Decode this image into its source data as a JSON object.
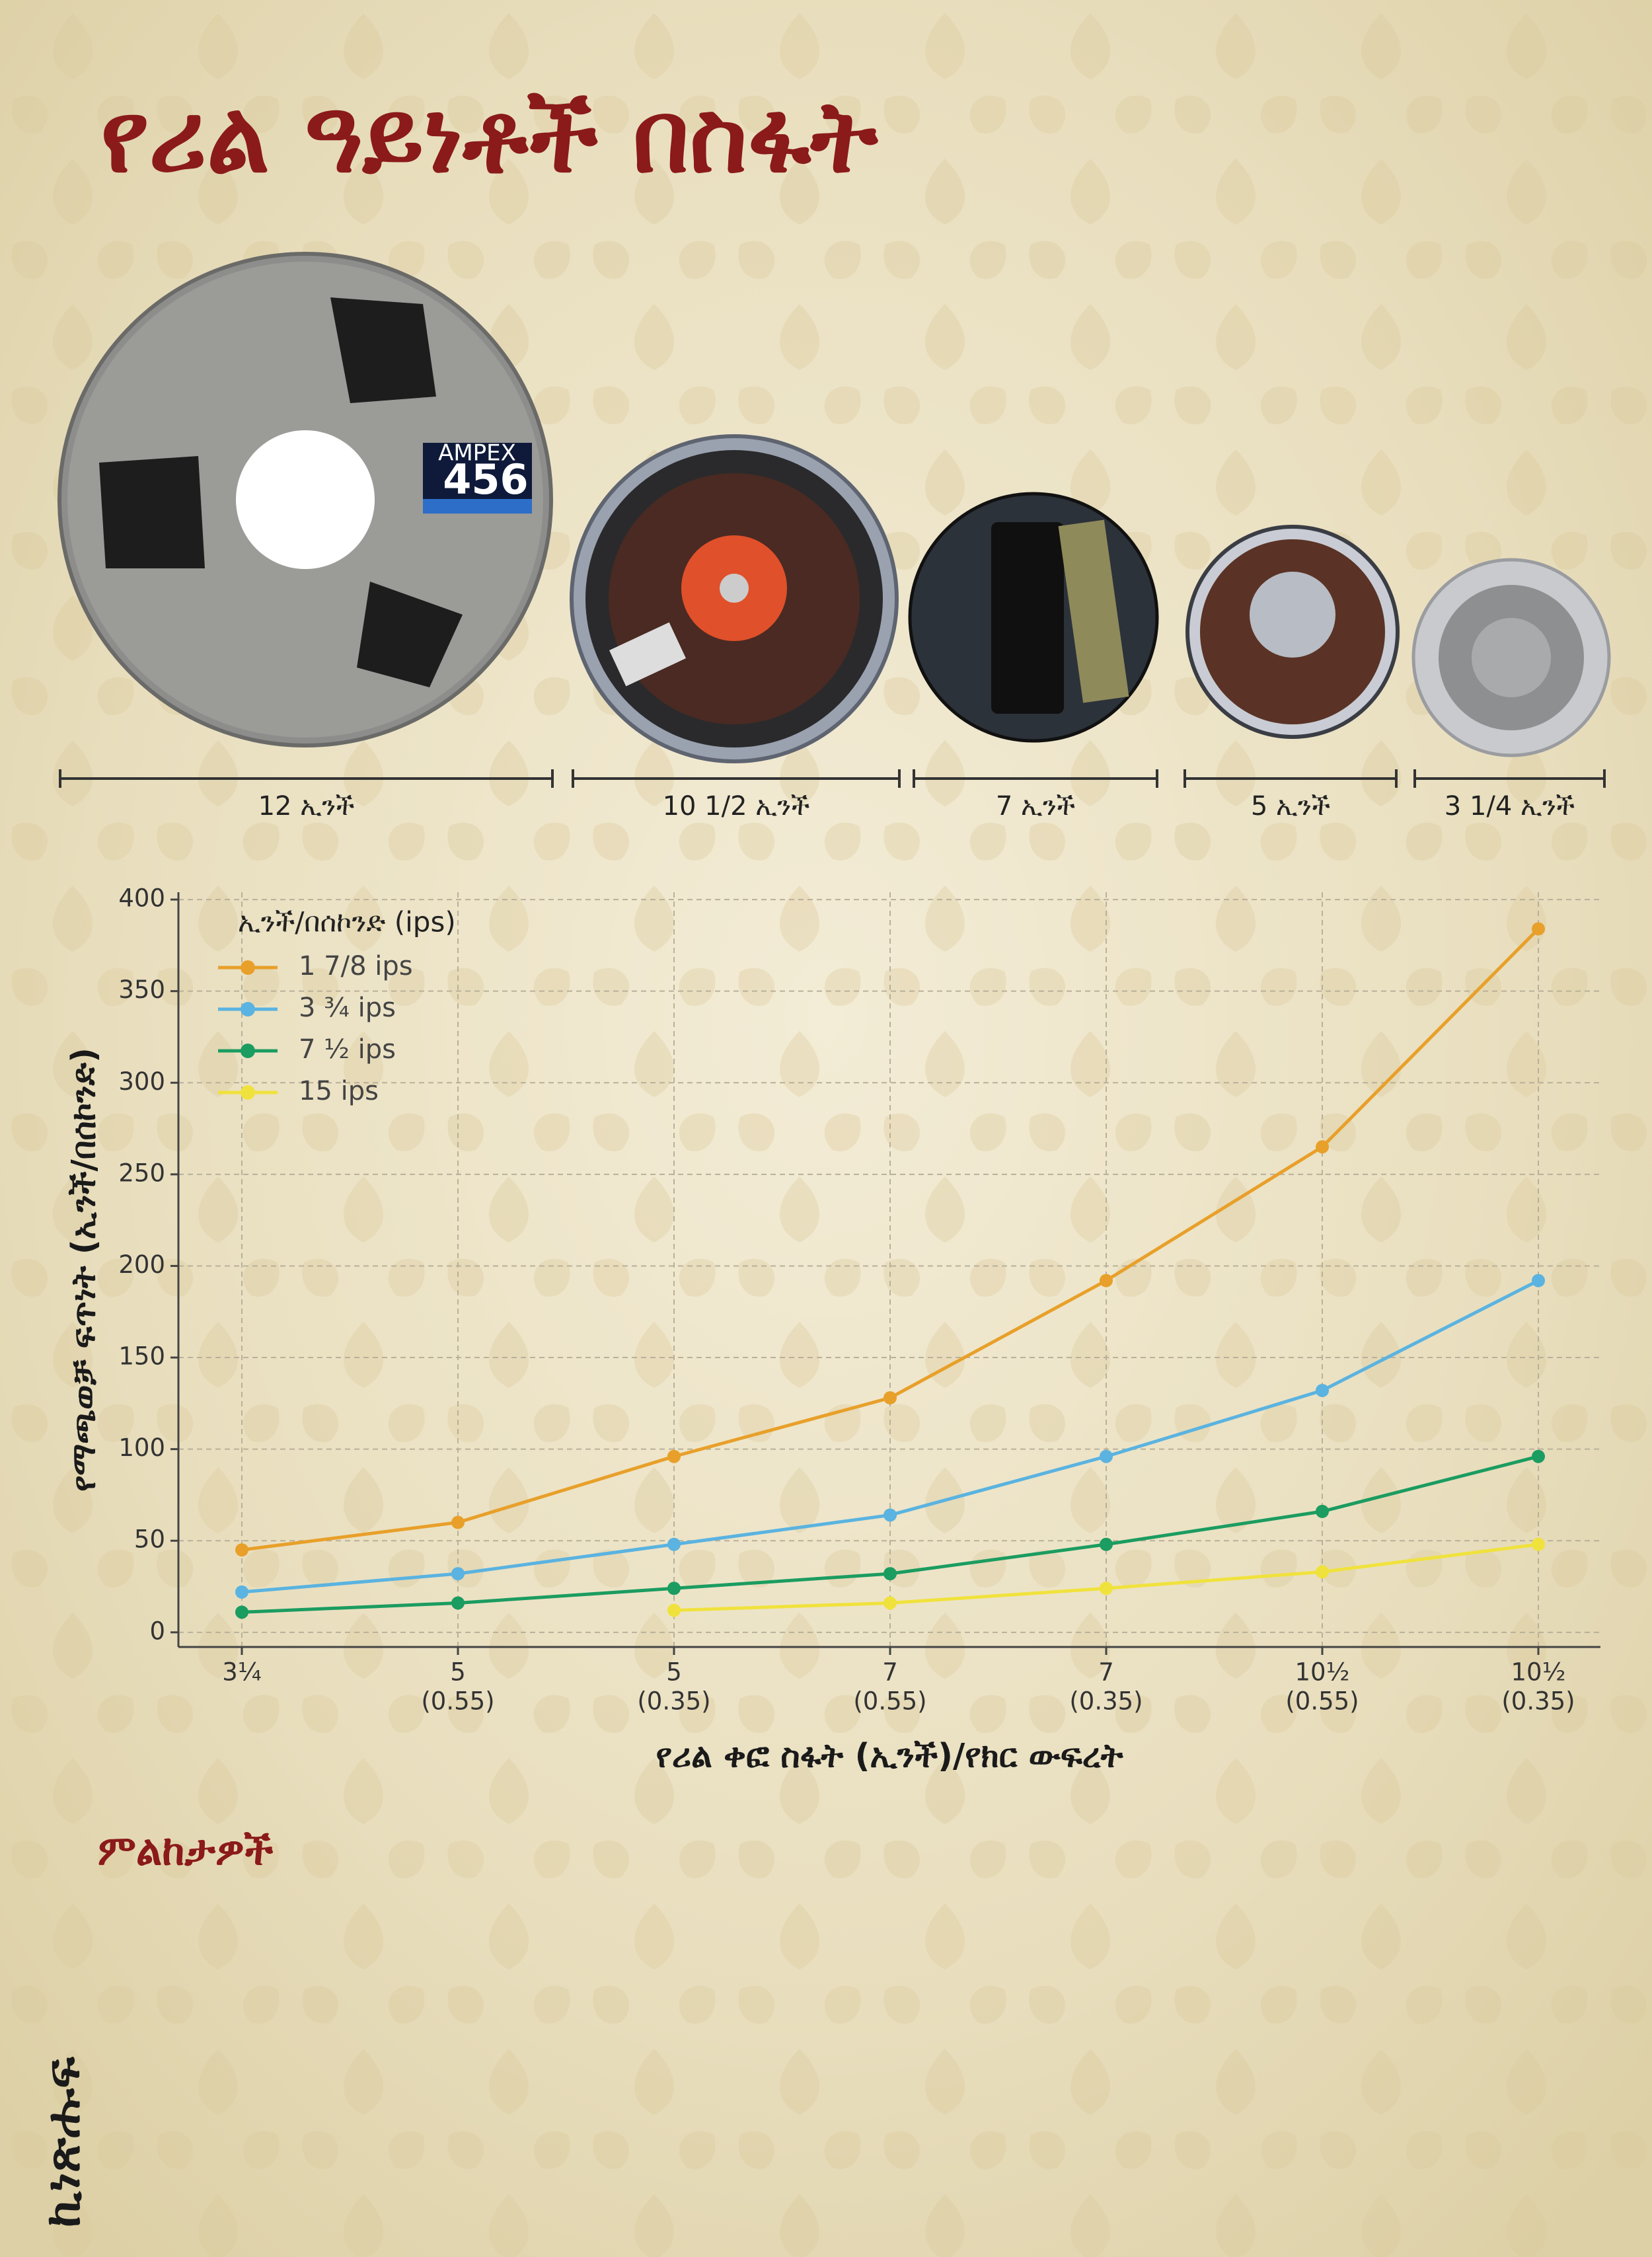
{
  "header": {
    "title": "የሪል ዓይነቶች በስፋት"
  },
  "reels": [
    {
      "label": "12 ኢንች",
      "brand": "AMPEX",
      "number": "456"
    },
    {
      "label": "10 1/2 ኢንች"
    },
    {
      "label": "7 ኢንች"
    },
    {
      "label": "5 ኢንች"
    },
    {
      "label": "3 1/4 ኢንች"
    }
  ],
  "chart_data": {
    "type": "line",
    "xlabel": "የሪል ቀፎ ስፋት (ኢንች)/የክር ውፍረት",
    "ylabel": "የማጫወቻ ፍጥነት (ኢንች/በሰኮንድ)",
    "legend_title": "ኢንች/በሰኮንድ (ips)",
    "legend": "upper left",
    "grid": true,
    "categories": [
      [
        "3¼"
      ],
      [
        "5",
        "(0.55)"
      ],
      [
        "5",
        "(0.35)"
      ],
      [
        "7",
        "(0.55)"
      ],
      [
        "7",
        "(0.35)"
      ],
      [
        "10½",
        "(0.55)"
      ],
      [
        "10½",
        "(0.35)"
      ]
    ],
    "series": [
      {
        "name": "1 7/8 ips",
        "color": "#e8a02a",
        "values": [
          45,
          60,
          96,
          128,
          192,
          265,
          384
        ]
      },
      {
        "name": "3 ¾ ips",
        "color": "#5ab3e0",
        "values": [
          22,
          32,
          48,
          64,
          96,
          132,
          192
        ]
      },
      {
        "name": "7 ½ ips",
        "color": "#1b9c60",
        "values": [
          11,
          16,
          24,
          32,
          48,
          66,
          96
        ]
      },
      {
        "name": "15 ips",
        "color": "#f0e23c",
        "values": [
          null,
          null,
          12,
          16,
          24,
          33,
          48
        ]
      }
    ],
    "ylim": [
      -8,
      404
    ],
    "yticks": [
      0,
      50,
      100,
      150,
      200,
      250,
      300,
      350,
      400
    ]
  },
  "notes": {
    "heading": "ምልከታዎች"
  },
  "logo": {
    "text": "ኪነጽሑፍ"
  }
}
